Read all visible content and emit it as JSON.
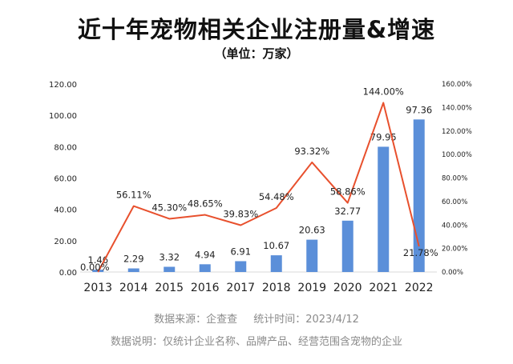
{
  "title": "近十年宠物相关企业注册量&增速",
  "subtitle": "（单位：万家）",
  "source_line": {
    "source": "数据来源：企查查",
    "stat_time": "统计时间：2023/4/12"
  },
  "note": "数据说明：仅统计企业名称、品牌产品、经营范围含宠物的企业",
  "colors": {
    "bar": "#5b8fd9",
    "line": "#e8502d",
    "text": "#222222",
    "muted": "#8a8a8a"
  },
  "chart_data": {
    "type": "bar",
    "categories": [
      "2013",
      "2014",
      "2015",
      "2016",
      "2017",
      "2018",
      "2019",
      "2020",
      "2021",
      "2022"
    ],
    "series": [
      {
        "type": "bar",
        "axis": "left",
        "values": [
          1.46,
          2.29,
          3.32,
          4.94,
          6.91,
          10.67,
          20.63,
          32.77,
          79.95,
          97.36
        ],
        "labels": [
          "1.46",
          "2.29",
          "3.32",
          "4.94",
          "6.91",
          "10.67",
          "20.63",
          "32.77",
          "79.95",
          "97.36"
        ]
      },
      {
        "type": "line",
        "axis": "right",
        "values": [
          0.0,
          56.11,
          45.3,
          48.65,
          39.83,
          54.48,
          93.32,
          58.86,
          144.0,
          21.78
        ],
        "labels": [
          "0.00%",
          "56.11%",
          "45.30%",
          "48.65%",
          "39.83%",
          "54.48%",
          "93.32%",
          "58.86%",
          "144.00%",
          "21.78%"
        ]
      }
    ],
    "y_left": {
      "range": [
        0,
        120
      ],
      "ticks": [
        "0.00",
        "20.00",
        "40.00",
        "60.00",
        "80.00",
        "100.00",
        "120.00"
      ]
    },
    "y_right": {
      "range": [
        0,
        160
      ],
      "ticks": [
        "0.00%",
        "20.00%",
        "40.00%",
        "60.00%",
        "80.00%",
        "100.00%",
        "120.00%",
        "140.00%",
        "160.00%"
      ]
    },
    "grid": false,
    "legend": "none"
  }
}
